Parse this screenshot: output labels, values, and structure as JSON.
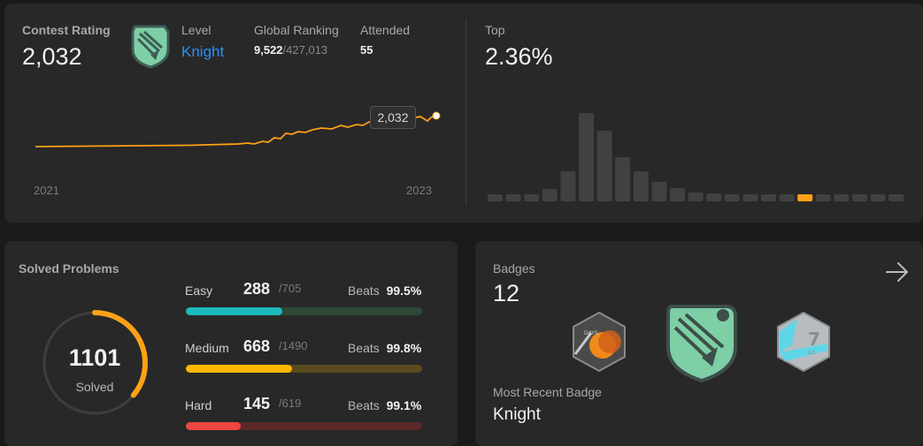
{
  "contest": {
    "rating_label": "Contest Rating",
    "rating_value": "2,032",
    "level_label": "Level",
    "level_value": "Knight",
    "ranking_label": "Global Ranking",
    "ranking_value": "9,522",
    "ranking_total": "/427,013",
    "attended_label": "Attended",
    "attended_value": "55",
    "tooltip_value": "2,032",
    "x_start": "2021",
    "x_end": "2023",
    "top_label": "Top",
    "top_value": "2.36%",
    "accent_color": "#ffa116"
  },
  "solved": {
    "title": "Solved Problems",
    "total": "1101",
    "total_label": "Solved",
    "ring_fraction": 0.36,
    "rows": [
      {
        "name": "Easy",
        "count": "288",
        "total": "/705",
        "beats_label": "Beats",
        "beats_value": "99.5%",
        "fraction": 0.408,
        "color": "#1cbaba",
        "track": "#2c4a35"
      },
      {
        "name": "Medium",
        "count": "668",
        "total": "/1490",
        "beats_label": "Beats",
        "beats_value": "99.8%",
        "fraction": 0.448,
        "color": "#ffb800",
        "track": "#5a4a1e"
      },
      {
        "name": "Hard",
        "count": "145",
        "total": "/619",
        "beats_label": "Beats",
        "beats_value": "99.1%",
        "fraction": 0.234,
        "color": "#ef4743",
        "track": "#5a2a28"
      }
    ]
  },
  "badges": {
    "title": "Badges",
    "count": "12",
    "recent_label": "Most Recent Badge",
    "recent_value": "Knight",
    "icons": [
      "days-badge-icon",
      "knight-badge-icon",
      "july-badge-icon"
    ],
    "july_text": "7",
    "july_sub": "JUL",
    "days_text": "DAYS"
  }
}
